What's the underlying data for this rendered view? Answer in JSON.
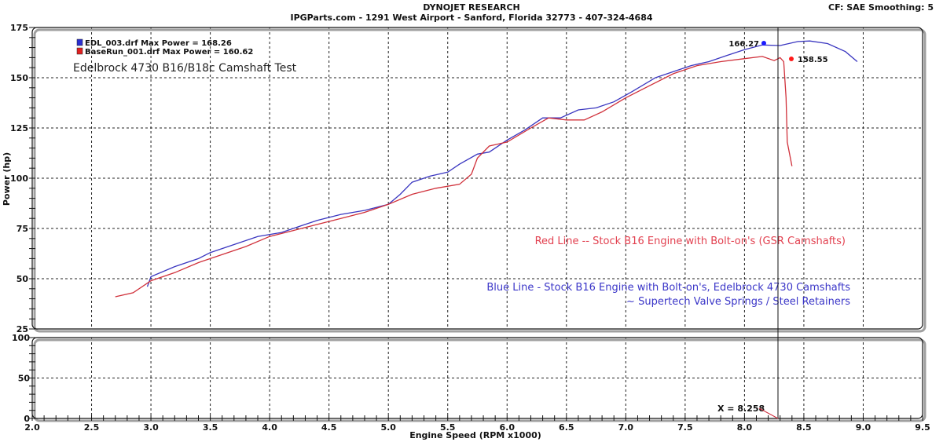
{
  "header": {
    "title": "DYNOJET RESEARCH",
    "subtitle": "IPGParts.com - 1291 West Airport - Sanford, Florida 32773 - 407-324-4684",
    "settings": "CF: SAE  Smoothing: 5"
  },
  "legend": {
    "items": [
      {
        "label": "EDL_003.drf Max Power = 168.26",
        "color": "#2a2fd0"
      },
      {
        "label": "BaseRun_001.drf Max Power = 160.62",
        "color": "#e02020"
      }
    ]
  },
  "annotations": {
    "test_title": "Edelbrock 4730 B16/B18c Camshaft Test",
    "red_note": "Red Line -- Stock B16 Engine with Bolt-on's (GSR Camshafts)",
    "blue_note_1": "Blue Line - Stock B16 Engine with Bolt-on's, Edelbrock 4730 Camshafts",
    "blue_note_2": "~ Supertech Valve Springs / Steel Retainers",
    "cursor_blue_value": "166.27",
    "cursor_red_value": "158.55",
    "cursor_x": "X = 8.258"
  },
  "axes": {
    "ylabel": "Power (hp)",
    "xlabel": "Engine Speed (RPM x1000)",
    "y_ticks_top": [
      "175",
      "150",
      "125",
      "100",
      "75",
      "50",
      "25"
    ],
    "y_ticks_bottom": [
      "100",
      "50",
      "0"
    ],
    "x_ticks": [
      "2.0",
      "2.5",
      "3.0",
      "3.5",
      "4.0",
      "4.5",
      "5.0",
      "5.5",
      "6.0",
      "6.5",
      "7.0",
      "7.5",
      "8.0",
      "8.5",
      "9.0",
      "9.5"
    ]
  },
  "chart_data": {
    "type": "line",
    "title": "DYNOJET RESEARCH",
    "subtitle": "Edelbrock 4730 B16/B18c Camshaft Test",
    "xlabel": "Engine Speed (RPM x1000)",
    "ylabel": "Power (hp)",
    "xlim": [
      2.0,
      9.5
    ],
    "ylim": [
      25,
      175
    ],
    "grid": true,
    "legend_position": "top-left",
    "cursor": {
      "x": 8.258,
      "blue_value": 166.27,
      "red_value": 158.55
    },
    "series": [
      {
        "name": "EDL_003.drf",
        "max_power": 168.26,
        "color": "#2a2fd0",
        "x": [
          2.97,
          3.0,
          3.2,
          3.4,
          3.5,
          3.7,
          3.9,
          4.1,
          4.25,
          4.4,
          4.6,
          4.8,
          5.0,
          5.1,
          5.2,
          5.35,
          5.5,
          5.6,
          5.75,
          5.85,
          6.0,
          6.15,
          6.3,
          6.45,
          6.6,
          6.75,
          6.9,
          7.05,
          7.25,
          7.4,
          7.55,
          7.7,
          7.85,
          8.0,
          8.15,
          8.3,
          8.45,
          8.55,
          8.7,
          8.85,
          8.95
        ],
        "y": [
          46,
          51,
          56,
          60,
          63,
          67,
          71,
          73,
          76,
          79,
          82,
          84,
          87,
          92,
          98,
          101,
          103,
          107,
          112,
          113,
          119,
          124,
          130,
          130,
          134,
          135,
          138,
          143,
          150,
          153,
          156,
          158,
          161,
          164,
          166.3,
          166,
          168,
          168.3,
          167,
          163,
          158
        ]
      },
      {
        "name": "BaseRun_001.drf",
        "max_power": 160.62,
        "color": "#e02020",
        "x": [
          2.7,
          2.85,
          3.0,
          3.2,
          3.4,
          3.6,
          3.8,
          4.0,
          4.2,
          4.4,
          4.6,
          4.8,
          5.0,
          5.2,
          5.4,
          5.6,
          5.7,
          5.75,
          5.85,
          6.0,
          6.2,
          6.35,
          6.5,
          6.65,
          6.8,
          7.0,
          7.2,
          7.4,
          7.6,
          7.8,
          8.0,
          8.15,
          8.25,
          8.3,
          8.33,
          8.35,
          8.36,
          8.4
        ],
        "y": [
          41,
          43,
          49,
          53,
          58,
          62,
          66,
          71,
          74,
          77,
          80,
          83,
          87,
          92,
          95,
          97,
          102,
          110,
          116,
          118,
          125,
          130,
          129,
          129,
          133,
          140,
          146,
          152,
          156,
          158,
          159.5,
          160.6,
          158.5,
          160,
          158,
          140,
          118,
          106
        ]
      }
    ]
  }
}
